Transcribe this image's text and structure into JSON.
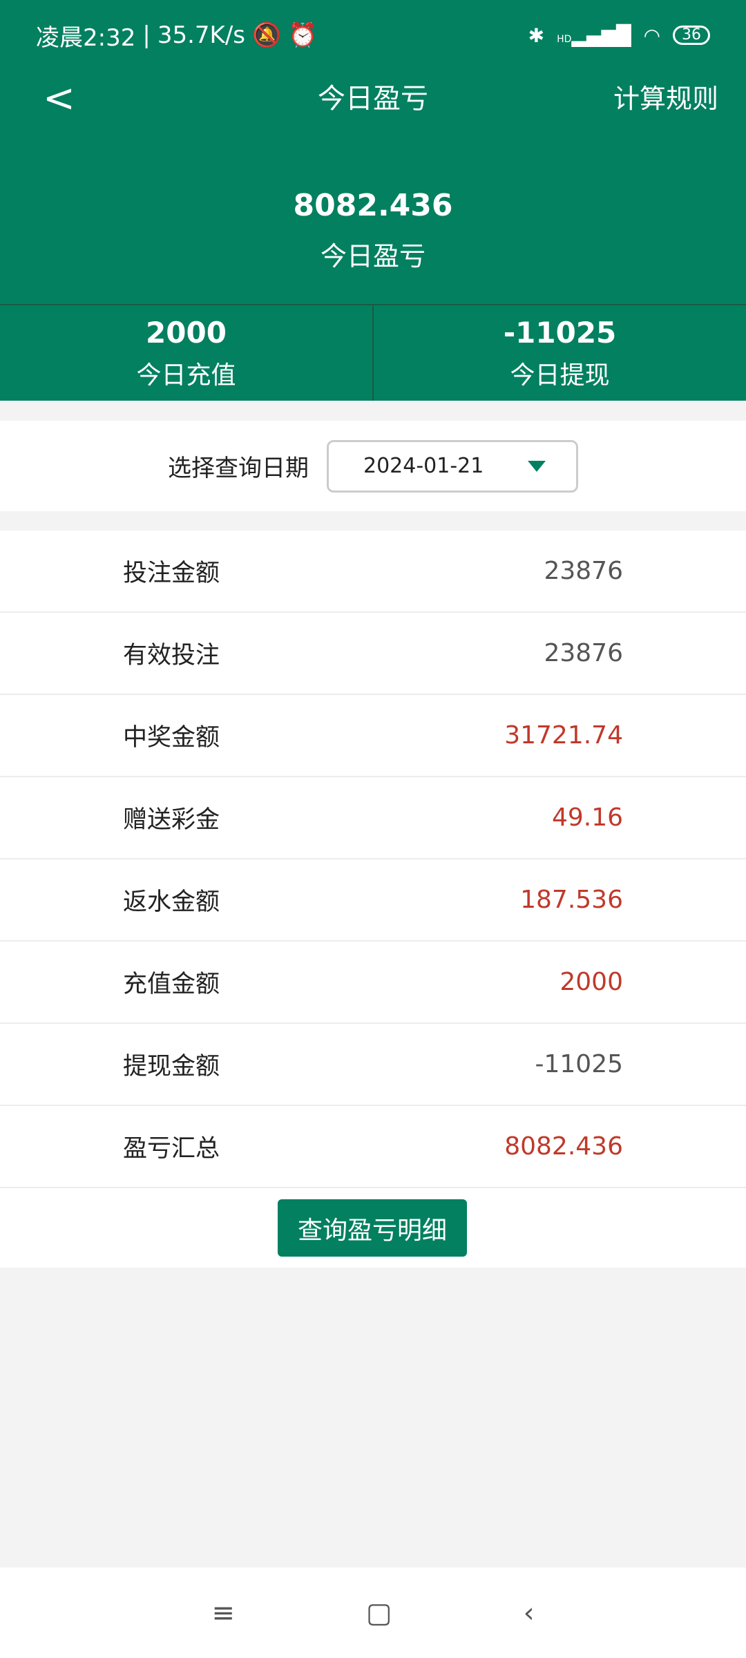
{
  "status": {
    "time": "凌晨2:32",
    "speed": "35.7K/s",
    "battery": "36",
    "signal": "HD"
  },
  "header": {
    "title": "今日盈亏",
    "rule": "计算规则",
    "total_value": "8082.436",
    "total_label": "今日盈亏"
  },
  "stats": [
    {
      "value": "2000",
      "label": "今日充值"
    },
    {
      "value": "-11025",
      "label": "今日提现"
    }
  ],
  "date": {
    "label": "选择查询日期",
    "value": "2024-01-21"
  },
  "rows": [
    {
      "label": "投注金额",
      "value": "23876",
      "red": false
    },
    {
      "label": "有效投注",
      "value": "23876",
      "red": false
    },
    {
      "label": "中奖金额",
      "value": "31721.74",
      "red": true
    },
    {
      "label": "赠送彩金",
      "value": "49.16",
      "red": true
    },
    {
      "label": "返水金额",
      "value": "187.536",
      "red": true
    },
    {
      "label": "充值金额",
      "value": "2000",
      "red": true
    },
    {
      "label": "提现金额",
      "value": "-11025",
      "red": false
    },
    {
      "label": "盈亏汇总",
      "value": "8082.436",
      "red": true
    }
  ],
  "button": "查询盈亏明细",
  "colors": {
    "primary": "#028060",
    "red": "#c0392b"
  }
}
